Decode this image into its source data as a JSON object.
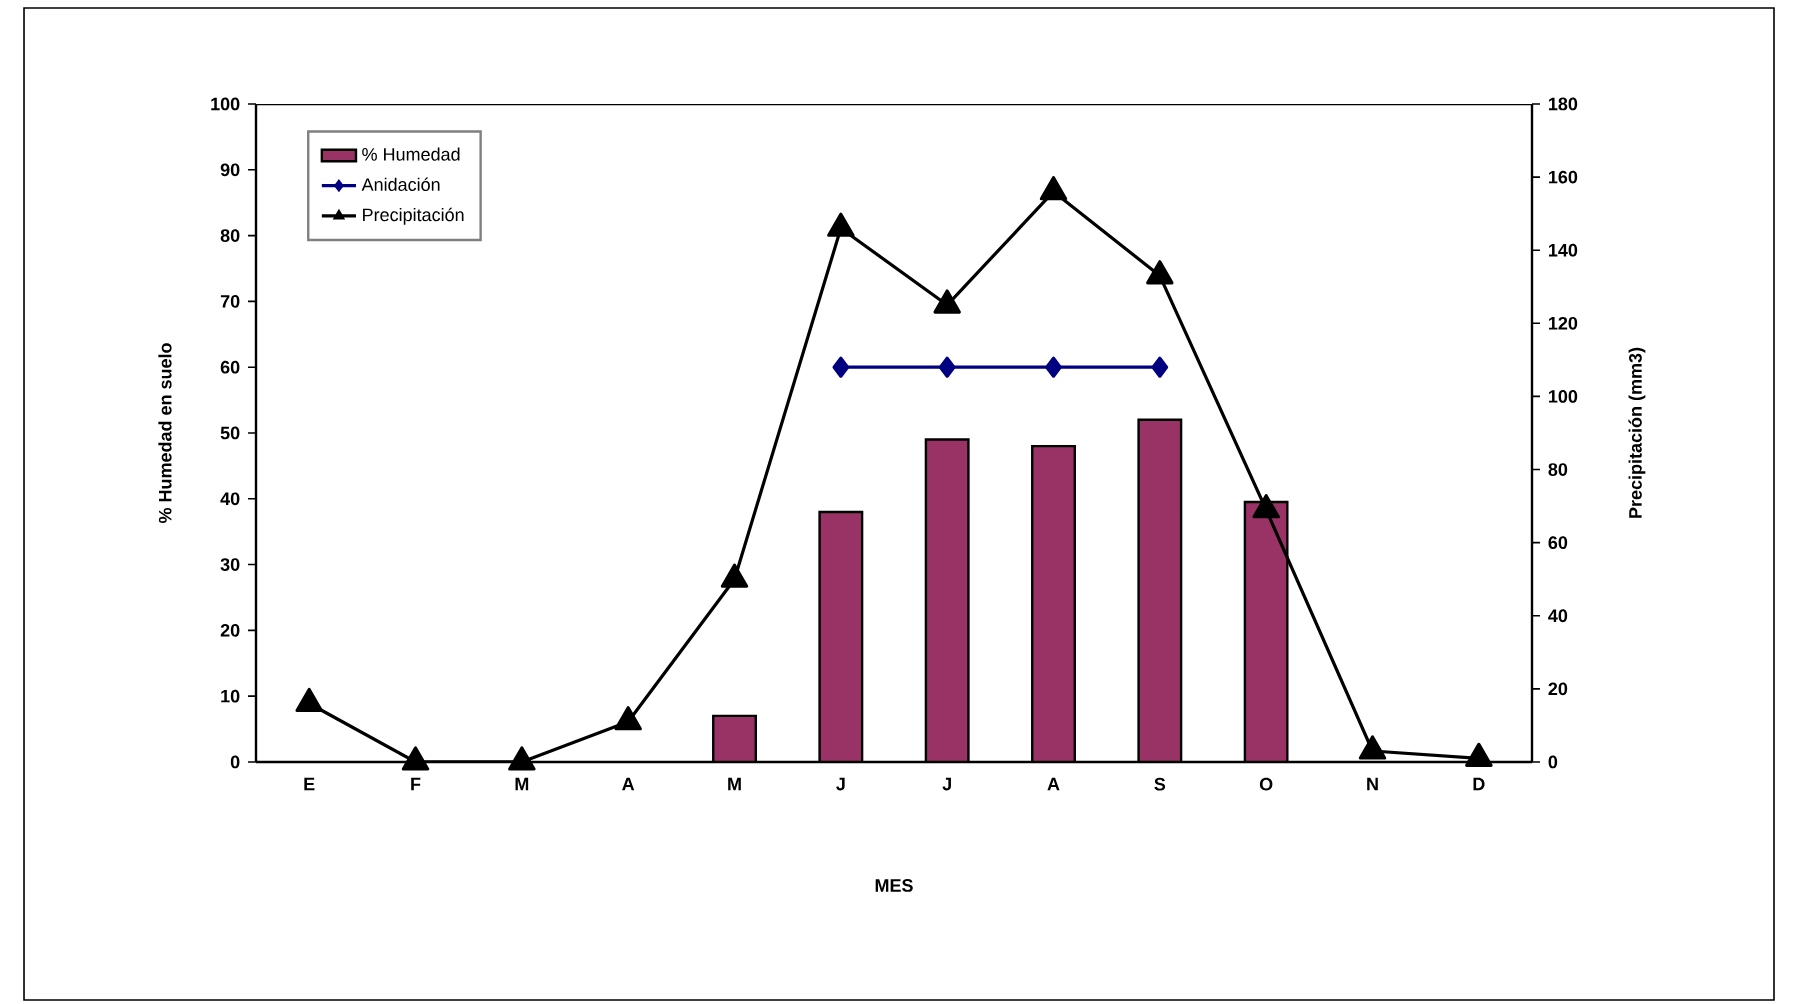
{
  "chart_data": {
    "type": "bar",
    "xlabel": "MES",
    "ylabel": "% Humedad en suelo",
    "y2label": "Precipitación (mm3)",
    "categories": [
      "E",
      "F",
      "M",
      "A",
      "M",
      "J",
      "J",
      "A",
      "S",
      "O",
      "N",
      "D"
    ],
    "series": [
      {
        "name": "% Humedad",
        "color": "#993366",
        "values": [
          null,
          null,
          null,
          null,
          7,
          38,
          49,
          48,
          52,
          39.5,
          null,
          null
        ]
      },
      {
        "name": "Anidación",
        "type": "line",
        "color": "#000080",
        "marker": "diamond",
        "values": [
          null,
          null,
          null,
          null,
          null,
          60,
          60,
          60,
          60,
          null,
          null,
          null
        ]
      },
      {
        "name": "Precipitación",
        "type": "line",
        "color": "#000000",
        "marker": "triangle",
        "axis": "y2",
        "values": [
          16,
          0,
          0,
          11,
          50,
          146,
          125,
          156,
          133,
          69,
          3,
          1
        ]
      }
    ],
    "ylim": [
      0,
      100
    ],
    "yticks": [
      0,
      10,
      20,
      30,
      40,
      50,
      60,
      70,
      80,
      90,
      100
    ],
    "y2lim": [
      0,
      180
    ],
    "y2ticks": [
      0,
      20,
      40,
      60,
      80,
      100,
      120,
      140,
      160,
      180
    ],
    "legend": "top left",
    "grid": false
  }
}
